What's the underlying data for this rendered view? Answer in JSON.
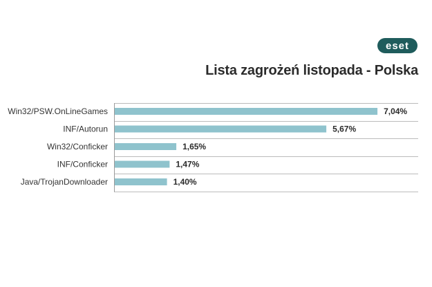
{
  "logo": {
    "text": "eset",
    "color": "#1f5c5c"
  },
  "chart_data": {
    "type": "bar",
    "orientation": "horizontal",
    "title": "Lista zagrożeń listopada - Polska",
    "categories": [
      "Win32/PSW.OnLineGames",
      "INF/Autorun",
      "Win32/Conficker",
      "INF/Conficker",
      "Java/TrojanDownloader"
    ],
    "values": [
      7.04,
      5.67,
      1.65,
      1.47,
      1.4
    ],
    "value_labels": [
      "7,04%",
      "5,67%",
      "1,65%",
      "1,47%",
      "1,40%"
    ],
    "xlim": [
      0,
      8.15
    ],
    "grid": true,
    "colors": {
      "bar": "#8fc3cd",
      "grid": "#bbbbbb",
      "axis": "#999999"
    }
  }
}
